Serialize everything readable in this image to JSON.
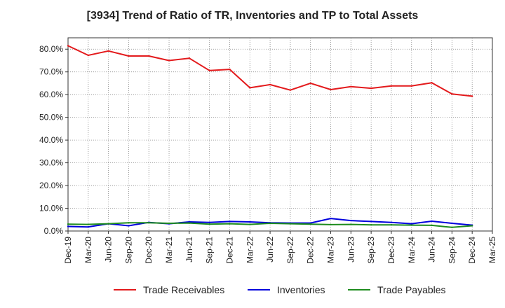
{
  "chart_data": {
    "type": "line",
    "title": "[3934]  Trend of Ratio of TR, Inventories and TP to Total Assets",
    "xlabel": "",
    "ylabel": "",
    "ylim": [
      0,
      85
    ],
    "yticks": [
      "0.0%",
      "10.0%",
      "20.0%",
      "30.0%",
      "40.0%",
      "50.0%",
      "60.0%",
      "70.0%",
      "80.0%"
    ],
    "categories": [
      "Dec-19",
      "Mar-20",
      "Jun-20",
      "Sep-20",
      "Dec-20",
      "Mar-21",
      "Jun-21",
      "Sep-21",
      "Dec-21",
      "Mar-22",
      "Jun-22",
      "Sep-22",
      "Dec-22",
      "Mar-23",
      "Jun-23",
      "Sep-23",
      "Dec-23",
      "Mar-24",
      "Jun-24",
      "Sep-24",
      "Dec-24",
      "Mar-25"
    ],
    "grid": true,
    "legend_position": "bottom",
    "series": [
      {
        "name": "Trade Receivables",
        "color": "#e31a1c",
        "values": [
          81.5,
          77.3,
          79.2,
          77.0,
          77.0,
          75.0,
          76.0,
          70.6,
          71.1,
          63.0,
          64.4,
          62.0,
          65.0,
          62.2,
          63.5,
          62.8,
          63.8,
          63.8,
          65.2,
          60.3,
          59.3,
          null
        ]
      },
      {
        "name": "Inventories",
        "color": "#0000dd",
        "values": [
          2.0,
          1.8,
          3.2,
          2.3,
          3.8,
          3.2,
          4.0,
          3.8,
          4.2,
          4.0,
          3.6,
          3.5,
          3.5,
          5.5,
          4.6,
          4.2,
          3.8,
          3.2,
          4.3,
          3.4,
          2.6,
          null
        ]
      },
      {
        "name": "Trade Payables",
        "color": "#1e8c1e",
        "values": [
          3.0,
          2.9,
          3.2,
          3.6,
          3.6,
          3.4,
          3.5,
          3.0,
          3.2,
          2.9,
          3.4,
          3.2,
          3.0,
          2.8,
          2.9,
          2.7,
          2.7,
          2.6,
          2.5,
          1.6,
          2.3,
          null
        ]
      }
    ]
  }
}
